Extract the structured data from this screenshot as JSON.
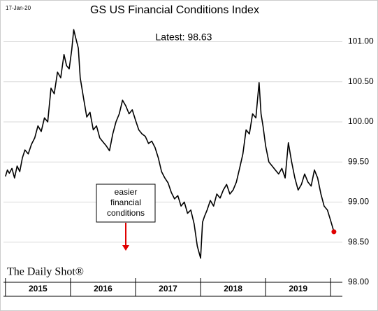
{
  "chart_data": {
    "type": "line",
    "title": "GS US Financial Conditions Index",
    "date_stamp": "17-Jan-20",
    "annotation": "Latest:  98.63",
    "note_lines": [
      "easier",
      "financial",
      "conditions"
    ],
    "watermark": "The Daily Shot®",
    "categories": [
      "2015",
      "2016",
      "2017",
      "2018",
      "2019"
    ],
    "x": [
      2015.0,
      2015.03,
      2015.06,
      2015.1,
      2015.14,
      2015.18,
      2015.22,
      2015.26,
      2015.3,
      2015.35,
      2015.4,
      2015.45,
      2015.5,
      2015.55,
      2015.6,
      2015.65,
      2015.7,
      2015.75,
      2015.8,
      2015.85,
      2015.9,
      2015.94,
      2015.98,
      2016.02,
      2016.05,
      2016.08,
      2016.12,
      2016.15,
      2016.2,
      2016.25,
      2016.3,
      2016.35,
      2016.4,
      2016.45,
      2016.5,
      2016.55,
      2016.6,
      2016.65,
      2016.7,
      2016.75,
      2016.8,
      2016.85,
      2016.9,
      2016.95,
      2017.0,
      2017.05,
      2017.1,
      2017.15,
      2017.2,
      2017.25,
      2017.3,
      2017.35,
      2017.4,
      2017.45,
      2017.5,
      2017.55,
      2017.6,
      2017.65,
      2017.7,
      2017.75,
      2017.8,
      2017.85,
      2017.9,
      2017.95,
      2018.0,
      2018.03,
      2018.06,
      2018.1,
      2018.15,
      2018.2,
      2018.25,
      2018.3,
      2018.35,
      2018.4,
      2018.45,
      2018.5,
      2018.55,
      2018.6,
      2018.65,
      2018.7,
      2018.75,
      2018.8,
      2018.85,
      2018.9,
      2018.93,
      2018.96,
      2019.0,
      2019.05,
      2019.1,
      2019.15,
      2019.2,
      2019.25,
      2019.3,
      2019.35,
      2019.4,
      2019.45,
      2019.5,
      2019.55,
      2019.6,
      2019.65,
      2019.7,
      2019.75,
      2019.8,
      2019.85,
      2019.9,
      2019.95,
      2020.0,
      2020.05
    ],
    "series": [
      {
        "name": "GS US Financial Conditions Index",
        "color": "#000000",
        "values": [
          99.32,
          99.4,
          99.36,
          99.42,
          99.3,
          99.45,
          99.38,
          99.55,
          99.65,
          99.6,
          99.72,
          99.8,
          99.95,
          99.88,
          100.05,
          100.0,
          100.42,
          100.35,
          100.62,
          100.55,
          100.84,
          100.7,
          100.66,
          100.9,
          101.15,
          101.05,
          100.92,
          100.55,
          100.3,
          100.06,
          100.12,
          99.9,
          99.95,
          99.8,
          99.75,
          99.7,
          99.64,
          99.85,
          100.0,
          100.1,
          100.27,
          100.2,
          100.1,
          100.15,
          100.02,
          99.9,
          99.85,
          99.82,
          99.73,
          99.76,
          99.68,
          99.55,
          99.38,
          99.3,
          99.24,
          99.12,
          99.04,
          99.08,
          98.95,
          99.0,
          98.86,
          98.9,
          98.73,
          98.45,
          98.3,
          98.75,
          98.82,
          98.9,
          99.02,
          98.95,
          99.1,
          99.05,
          99.15,
          99.22,
          99.1,
          99.15,
          99.25,
          99.42,
          99.6,
          99.9,
          99.85,
          100.1,
          100.05,
          100.49,
          100.1,
          99.95,
          99.7,
          99.5,
          99.45,
          99.4,
          99.35,
          99.42,
          99.3,
          99.74,
          99.5,
          99.3,
          99.15,
          99.22,
          99.35,
          99.25,
          99.2,
          99.4,
          99.3,
          99.1,
          98.95,
          98.9,
          98.77,
          98.63
        ]
      }
    ],
    "xlim": [
      2014.97,
      2020.18
    ],
    "xticks": [
      2015,
      2016,
      2017,
      2018,
      2019,
      2020
    ],
    "ylim": [
      98,
      101.31
    ],
    "yticks": [
      {
        "value": 98,
        "label": "98.00"
      },
      {
        "value": 98.5,
        "label": "98.50"
      },
      {
        "value": 99,
        "label": "99.00"
      },
      {
        "value": 99.5,
        "label": "99.50"
      },
      {
        "value": 100,
        "label": "100.00"
      },
      {
        "value": 100.5,
        "label": "100.50"
      },
      {
        "value": 101,
        "label": "101.00"
      }
    ],
    "grid": true,
    "last_point_color": "#e00000"
  }
}
